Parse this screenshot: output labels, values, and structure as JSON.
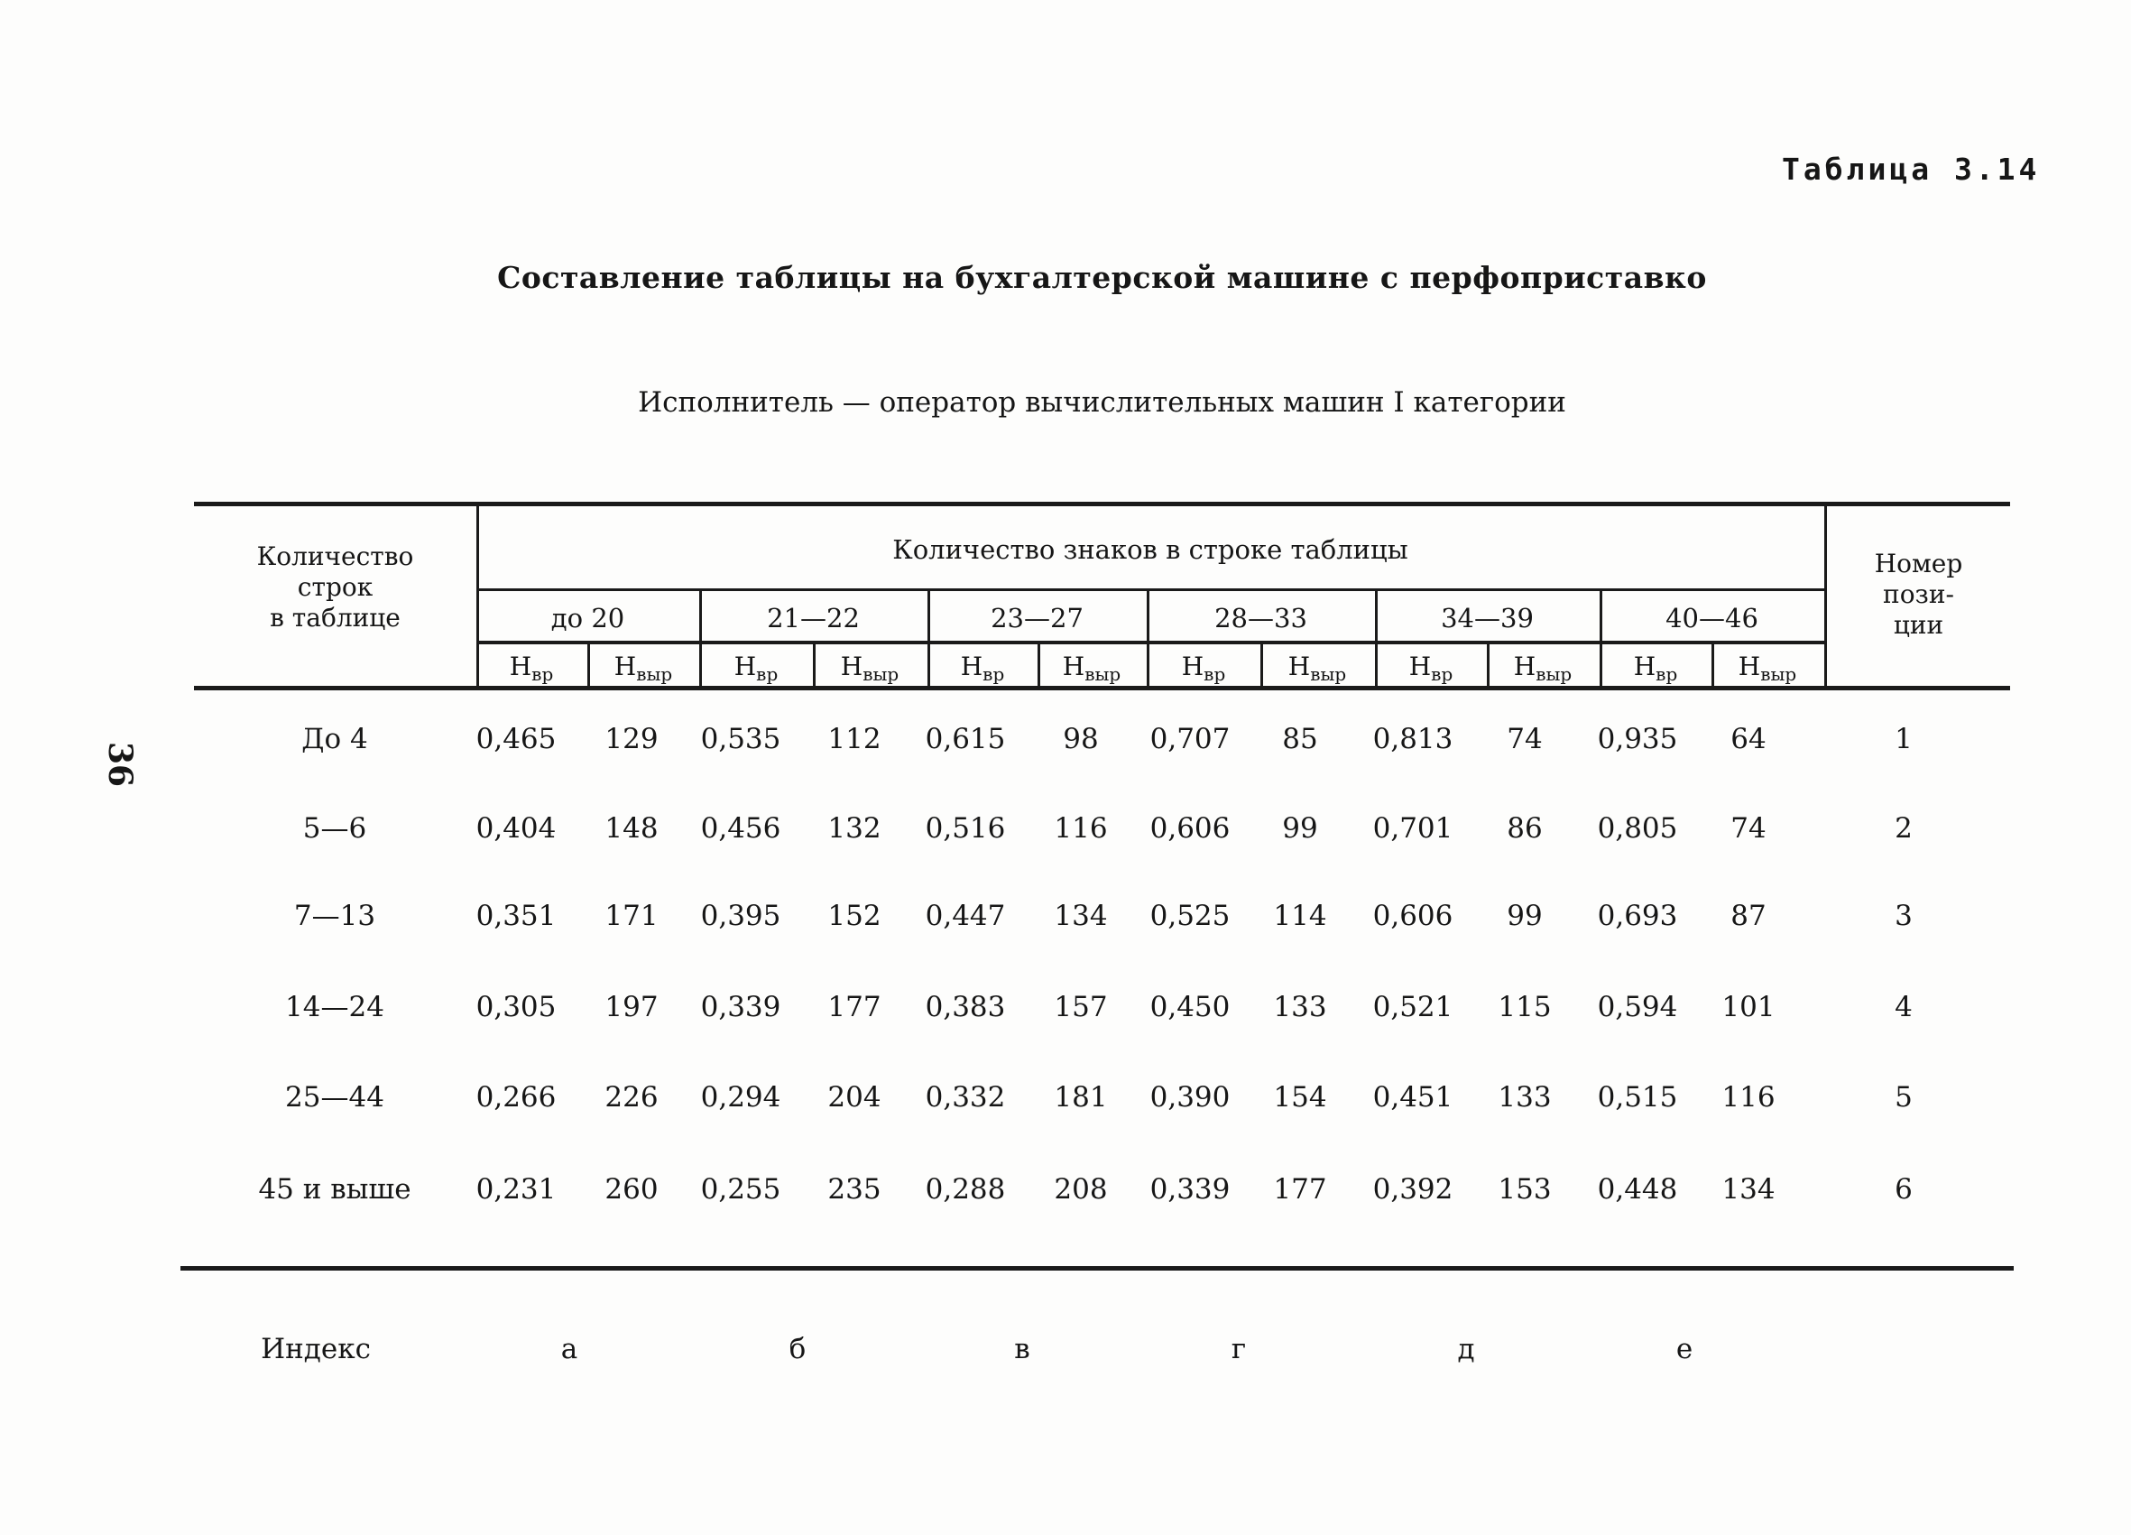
{
  "page": {
    "table_label": "Таблица 3.14",
    "page_number": "36",
    "title": "Составление таблицы на бухгалтерской машине с перфоприставко",
    "subtitle": "Исполнитель — оператор вычислительных машин I категории"
  },
  "table": {
    "col_rows_header": [
      "Количество",
      "строк",
      "в таблице"
    ],
    "span_header": "Количество знаков в строке таблицы",
    "groups": [
      "до 20",
      "21—22",
      "23—27",
      "28—33",
      "34—39",
      "40—46"
    ],
    "subcol": {
      "vr": {
        "base": "Н",
        "sub": "вр"
      },
      "vyr": {
        "base": "Н",
        "sub": "выр"
      }
    },
    "pos_header": [
      "Номер",
      "пози-",
      "ции"
    ],
    "rows": [
      {
        "label": "До 4",
        "values": [
          "0,465",
          "129",
          "0,535",
          "112",
          "0,615",
          "98",
          "0,707",
          "85",
          "0,813",
          "74",
          "0,935",
          "64"
        ],
        "pos": "1"
      },
      {
        "label": "5—6",
        "values": [
          "0,404",
          "148",
          "0,456",
          "132",
          "0,516",
          "116",
          "0,606",
          "99",
          "0,701",
          "86",
          "0,805",
          "74"
        ],
        "pos": "2"
      },
      {
        "label": "7—13",
        "values": [
          "0,351",
          "171",
          "0,395",
          "152",
          "0,447",
          "134",
          "0,525",
          "114",
          "0,606",
          "99",
          "0,693",
          "87"
        ],
        "pos": "3"
      },
      {
        "label": "14—24",
        "values": [
          "0,305",
          "197",
          "0,339",
          "177",
          "0,383",
          "157",
          "0,450",
          "133",
          "0,521",
          "115",
          "0,594",
          "101"
        ],
        "pos": "4"
      },
      {
        "label": "25—44",
        "values": [
          "0,266",
          "226",
          "0,294",
          "204",
          "0,332",
          "181",
          "0,390",
          "154",
          "0,451",
          "133",
          "0,515",
          "116"
        ],
        "pos": "5"
      },
      {
        "label": "45 и выше",
        "values": [
          "0,231",
          "260",
          "0,255",
          "235",
          "0,288",
          "208",
          "0,339",
          "177",
          "0,392",
          "153",
          "0,448",
          "134"
        ],
        "pos": "6"
      }
    ],
    "index_row": {
      "label": "Индекс",
      "letters": [
        "а",
        "б",
        "в",
        "г",
        "д",
        "е"
      ]
    }
  }
}
